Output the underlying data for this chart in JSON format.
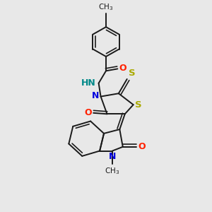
{
  "bg_color": "#e8e8e8",
  "bond_color": "#1a1a1a",
  "bond_width": 1.4,
  "dbo": 0.012,
  "figsize": [
    3.0,
    3.0
  ],
  "dpi": 100,
  "colors": {
    "O": "#ff2000",
    "N": "#0000dd",
    "NH": "#008888",
    "S": "#aaaa00",
    "C": "#1a1a1a"
  }
}
